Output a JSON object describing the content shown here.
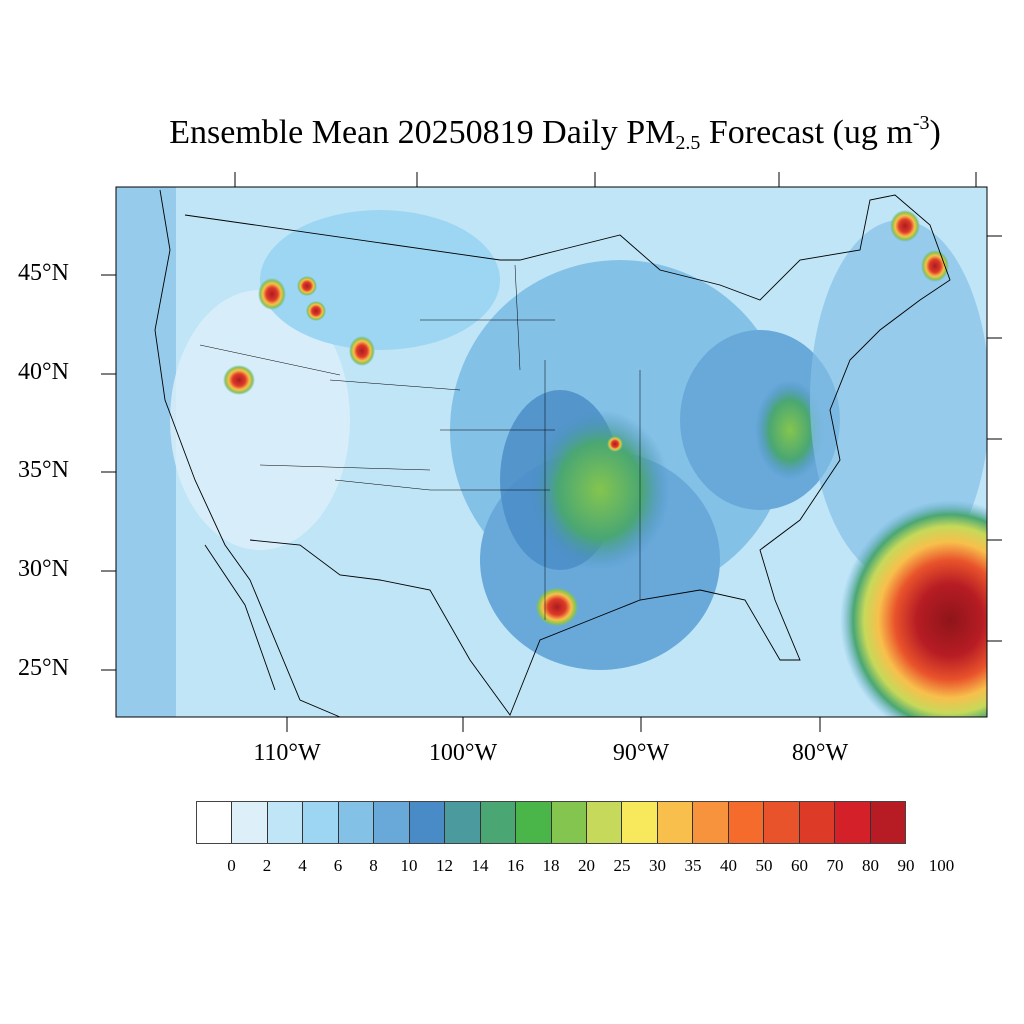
{
  "title": {
    "prefix": "Ensemble Mean 20250819 Daily PM",
    "subscript": "2.5",
    "middle": " Forecast (ug m",
    "superscript": "-3",
    "suffix": ")"
  },
  "map": {
    "lat_labels": [
      "45°N",
      "40°N",
      "35°N",
      "30°N",
      "25°N"
    ],
    "lon_labels": [
      "110°W",
      "100°W",
      "90°W",
      "80°W"
    ],
    "background_color": "#bfe5f7"
  },
  "colorbar": {
    "labels": [
      "0",
      "2",
      "4",
      "6",
      "8",
      "10",
      "12",
      "14",
      "16",
      "18",
      "20",
      "25",
      "30",
      "35",
      "40",
      "50",
      "60",
      "70",
      "80",
      "90",
      "100"
    ],
    "colors": [
      "#ffffff",
      "#ddf0fa",
      "#bfe5f7",
      "#9dd6f3",
      "#84c1e6",
      "#68a9da",
      "#488bc6",
      "#4a9a9e",
      "#4aa773",
      "#4ab548",
      "#84c54f",
      "#c6d95a",
      "#f7e85c",
      "#f8bf4c",
      "#f6933c",
      "#f46b2b",
      "#e9532b",
      "#de3a28",
      "#d32029",
      "#b71c24",
      "#aa1c21",
      "#8e1519"
    ]
  }
}
